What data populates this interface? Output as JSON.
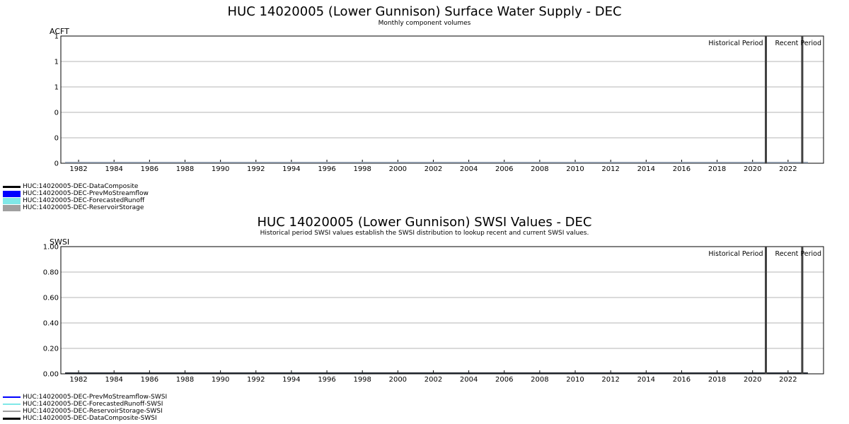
{
  "chart_data": [
    {
      "type": "area",
      "title": "HUC 14020005 (Lower Gunnison) Surface Water Supply - DEC",
      "subtitle": "Monthly component volumes",
      "ylabel": "ACFT",
      "xlabel": "",
      "xlim": [
        1981,
        2024
      ],
      "ylim": [
        0,
        1
      ],
      "y_tick_labels": [
        "0",
        "0",
        "0",
        "1",
        "1",
        "1"
      ],
      "x_ticks": [
        1982,
        1984,
        1986,
        1988,
        1990,
        1992,
        1994,
        1996,
        1998,
        2000,
        2002,
        2004,
        2006,
        2008,
        2010,
        2012,
        2014,
        2016,
        2018,
        2020,
        2022
      ],
      "grid": true,
      "period_markers": [
        2020.75,
        2022.8
      ],
      "period_labels": [
        "Historical Period",
        "Recent Period"
      ],
      "legend_position": "bottom-left",
      "series": [
        {
          "name": "HUC:14020005-DEC-DataComposite",
          "color": "#000000",
          "style": "line",
          "values": [
            0
          ]
        },
        {
          "name": "HUC:14020005-DEC-PrevMoStreamflow",
          "color": "#0000ff",
          "style": "area",
          "values": [
            0
          ]
        },
        {
          "name": "HUC:14020005-DEC-ForecastedRunoff",
          "color": "#80e8e8",
          "style": "area",
          "values": [
            0
          ]
        },
        {
          "name": "HUC:14020005-DEC-ReservoirStorage",
          "color": "#a0a0a0",
          "style": "area",
          "values": [
            0
          ]
        }
      ]
    },
    {
      "type": "line",
      "title": "HUC 14020005 (Lower Gunnison) SWSI Values - DEC",
      "subtitle": "Historical period SWSI values establish the SWSI distribution to lookup recent and current SWSI values.",
      "ylabel": "SWSI",
      "xlabel": "",
      "xlim": [
        1981,
        2024
      ],
      "ylim": [
        0,
        1
      ],
      "y_tick_labels": [
        "0.00",
        "0.20",
        "0.40",
        "0.60",
        "0.80",
        "1.00"
      ],
      "x_ticks": [
        1982,
        1984,
        1986,
        1988,
        1990,
        1992,
        1994,
        1996,
        1998,
        2000,
        2002,
        2004,
        2006,
        2008,
        2010,
        2012,
        2014,
        2016,
        2018,
        2020,
        2022
      ],
      "grid": true,
      "period_markers": [
        2020.75,
        2022.8
      ],
      "period_labels": [
        "Historical Period",
        "Recent Period"
      ],
      "legend_position": "bottom-left",
      "series": [
        {
          "name": "HUC:14020005-DEC-PrevMoStreamflow-SWSI",
          "color": "#0000ff",
          "style": "line",
          "values": [
            0
          ]
        },
        {
          "name": "HUC:14020005-DEC-ForecastedRunoff-SWSI",
          "color": "#80e8e8",
          "style": "line",
          "values": [
            0
          ]
        },
        {
          "name": "HUC:14020005-DEC-ReservoirStorage-SWSI",
          "color": "#a0a0a0",
          "style": "line",
          "values": [
            0
          ]
        },
        {
          "name": "HUC:14020005-DEC-DataComposite-SWSI",
          "color": "#000000",
          "style": "line",
          "values": [
            0
          ]
        }
      ]
    }
  ]
}
